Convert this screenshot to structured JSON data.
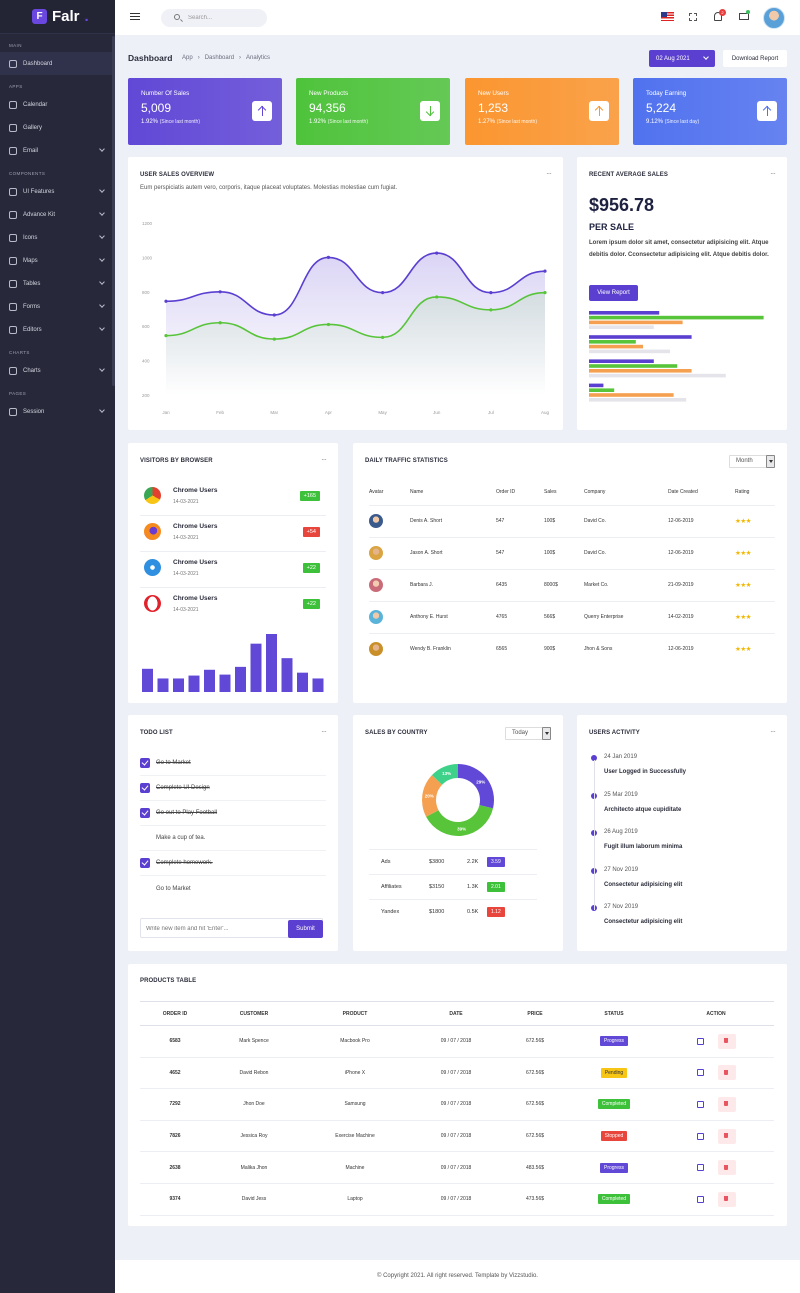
{
  "brand": {
    "name": "Falr",
    "logo_letter": "F"
  },
  "sidebar": {
    "sections": [
      {
        "title": "MAIN",
        "items": [
          {
            "label": "Dashboard",
            "icon": "home-icon",
            "has_children": false,
            "active": true
          }
        ]
      },
      {
        "title": "APPS",
        "items": [
          {
            "label": "Calendar",
            "icon": "calendar-icon",
            "has_children": false
          },
          {
            "label": "Gallery",
            "icon": "image-icon",
            "has_children": false
          },
          {
            "label": "Email",
            "icon": "mail-icon",
            "has_children": true
          }
        ]
      },
      {
        "title": "COMPONENTS",
        "items": [
          {
            "label": "UI Features",
            "icon": "features-icon",
            "has_children": true
          },
          {
            "label": "Advance Kit",
            "icon": "kit-icon",
            "has_children": true
          },
          {
            "label": "Icons",
            "icon": "icons-icon",
            "has_children": true
          },
          {
            "label": "Maps",
            "icon": "map-pin-icon",
            "has_children": true
          },
          {
            "label": "Tables",
            "icon": "table-icon",
            "has_children": true
          },
          {
            "label": "Forms",
            "icon": "form-icon",
            "has_children": true
          },
          {
            "label": "Editors",
            "icon": "editor-icon",
            "has_children": true
          }
        ]
      },
      {
        "title": "CHARTS",
        "items": [
          {
            "label": "Charts",
            "icon": "chart-icon",
            "has_children": true
          }
        ]
      },
      {
        "title": "PAGES",
        "items": [
          {
            "label": "Session",
            "icon": "user-icon",
            "has_children": true
          }
        ]
      }
    ]
  },
  "topbar": {
    "search_placeholder": "Search...",
    "notification_count": "2"
  },
  "page": {
    "title": "Dashboard",
    "breadcrumbs": [
      "App",
      "Dashboard",
      "Analytics"
    ],
    "date_label": "02 Aug 2021",
    "download_label": "Download Report"
  },
  "stats": [
    {
      "title": "Number Of Sales",
      "value": "5,009",
      "pct": "1.92%",
      "note": "(Since last month)",
      "color": "#6148d6",
      "direction": "up"
    },
    {
      "title": "New Products",
      "value": "94,356",
      "pct": "1.92%",
      "note": "(Since last month)",
      "color": "#4fc33c",
      "direction": "down"
    },
    {
      "title": "New Users",
      "value": "1,253",
      "pct": "1.27%",
      "note": "(Since last month)",
      "color": "#fb9630",
      "direction": "up"
    },
    {
      "title": "Today Earning",
      "value": "5,224",
      "pct": "9.12%",
      "note": "(Since last day)",
      "color": "#5172ef",
      "direction": "up"
    }
  ],
  "sales_overview": {
    "title": "USER SALES OVERVIEW",
    "subtitle": "Eum perspiciatis autem vero, corporis, itaque placeat voluptates. Molestias molestiae cum fugiat.",
    "chart_data": {
      "type": "area",
      "categories": [
        "Jan",
        "Feb",
        "Mar",
        "Apr",
        "May",
        "Jun",
        "Jul",
        "Aug"
      ],
      "series": [
        {
          "name": "Series 1",
          "color": "#5b3fd0",
          "values": [
            745,
            800,
            665,
            1000,
            795,
            1025,
            795,
            920
          ]
        },
        {
          "name": "Series 2",
          "color": "#58c43a",
          "values": [
            545,
            620,
            525,
            610,
            535,
            770,
            695,
            795
          ]
        }
      ],
      "yticks": [
        "200",
        "400",
        "600",
        "800",
        "1000",
        "1200"
      ],
      "ylim": [
        200,
        1200
      ]
    }
  },
  "recent_sales": {
    "title": "RECENT AVERAGE SALES",
    "amount": "$956.78",
    "per": "PER SALE",
    "desc": "Lorem ipsum dolor sit amet, consectetur adipisicing elit. Atque debitis dolor. Cconsectetur adipisicing elit. Atque debitis dolor.",
    "button": "View Report",
    "chart_data": {
      "type": "bar",
      "orientation": "horizontal",
      "groups": [
        {
          "values": [
            0.39,
            0.97,
            0.52,
            0.36
          ]
        },
        {
          "values": [
            0.57,
            0.26,
            0.3,
            0.45
          ]
        },
        {
          "values": [
            0.36,
            0.49,
            0.57,
            0.76
          ]
        },
        {
          "values": [
            0.08,
            0.14,
            0.47,
            0.54
          ]
        }
      ],
      "colors": [
        "#5b3fd0",
        "#58c43a",
        "#f5a050",
        "#e4e4ea"
      ]
    }
  },
  "browsers": {
    "title": "VISITORS BY BROWSER",
    "items": [
      {
        "name": "Chrome Users",
        "date": "14-03-2021",
        "badge": "+165",
        "badge_color": "#3ec13a",
        "icon": "chrome-icon"
      },
      {
        "name": "Chrome Users",
        "date": "14-03-2021",
        "badge": "+54",
        "badge_color": "#e8453c",
        "icon": "firefox-icon"
      },
      {
        "name": "Chrome Users",
        "date": "14-03-2021",
        "badge": "+22",
        "badge_color": "#3ec13a",
        "icon": "safari-icon"
      },
      {
        "name": "Chrome Users",
        "date": "14-03-2021",
        "badge": "+22",
        "badge_color": "#3ec13a",
        "icon": "opera-icon"
      }
    ],
    "chart_data": {
      "type": "bar",
      "values": [
        24,
        14,
        14,
        17,
        23,
        18,
        26,
        50,
        60,
        35,
        20,
        14
      ],
      "color": "#6148d6"
    }
  },
  "traffic": {
    "title": "DAILY TRAFFIC STATISTICS",
    "select": "Month",
    "columns": [
      "Avatar",
      "Name",
      "Order ID",
      "Sales",
      "Company",
      "Date Created",
      "Rating"
    ],
    "rows": [
      {
        "name": "Denis A. Short",
        "order": "547",
        "sales": "100$",
        "company": "David Co.",
        "date": "12-06-2019",
        "rating": "★★★"
      },
      {
        "name": "Jason A. Short",
        "order": "547",
        "sales": "100$",
        "company": "David Co.",
        "date": "12-06-2019",
        "rating": "★★★"
      },
      {
        "name": "Barbara J.",
        "order": "6435",
        "sales": "8000$",
        "company": "Market Co.",
        "date": "21-09-2019",
        "rating": "★★★"
      },
      {
        "name": "Anthony E. Hurst",
        "order": "4765",
        "sales": "566$",
        "company": "Querry Enterprise",
        "date": "14-02-2019",
        "rating": "★★★"
      },
      {
        "name": "Wendy B. Franklin",
        "order": "6565",
        "sales": "900$",
        "company": "Jhon & Sons",
        "date": "12-06-2019",
        "rating": "★★★"
      }
    ]
  },
  "todo": {
    "title": "TODO LIST",
    "items": [
      {
        "text": "Go to Market",
        "done": true
      },
      {
        "text": "Complete UI Design",
        "done": true
      },
      {
        "text": "Go out to Play Football",
        "done": true
      },
      {
        "text": "Make a cup of tea.",
        "done": false
      },
      {
        "text": "Complete homework.",
        "done": true
      },
      {
        "text": "Go to Market",
        "done": false
      }
    ],
    "input_placeholder": "Write new item and hit 'Enter'...",
    "submit": "Submit"
  },
  "country": {
    "title": "SALES BY COUNTRY",
    "select": "Today",
    "chart_data": {
      "type": "pie",
      "labels": [
        "",
        "",
        " ",
        ""
      ],
      "slices": [
        {
          "label": "29%",
          "value": 29,
          "color": "#6148d6"
        },
        {
          "label": "39%",
          "value": 39,
          "color": "#58c43a"
        },
        {
          "label": "20%",
          "value": 20,
          "color": "#f5a050"
        },
        {
          "label": "13%",
          "value": 13,
          "color": "#3ed18a"
        }
      ]
    },
    "rows": [
      {
        "name": "Ads",
        "amount": "$3800",
        "count": "2.2K",
        "pct": "3.59",
        "color": "#6148d6"
      },
      {
        "name": "Affiliates",
        "amount": "$3150",
        "count": "1.3K",
        "pct": "2.01",
        "color": "#3ec13a"
      },
      {
        "name": "Yandex",
        "amount": "$1800",
        "count": "0.5K",
        "pct": "1.12",
        "color": "#e8453c"
      }
    ]
  },
  "activity": {
    "title": "USERS ACTIVITY",
    "items": [
      {
        "date": "24 Jan 2019",
        "text": "User Logged in Successfully"
      },
      {
        "date": "25 Mar 2019",
        "text": "Architecto atque cupiditate"
      },
      {
        "date": "26 Aug 2019",
        "text": "Fugit illum laborum minima"
      },
      {
        "date": "27 Nov 2019",
        "text": "Consectetur adipisicing elit"
      },
      {
        "date": "27 Nov 2019",
        "text": "Consectetur adipisicing elit"
      }
    ]
  },
  "products": {
    "title": "PRODUCTS TABLE",
    "columns": [
      "ORDER ID",
      "CUSTOMER",
      "PRODUCT",
      "DATE",
      "PRICE",
      "STATUS",
      "ACTION"
    ],
    "rows": [
      {
        "id": "6583",
        "customer": "Mark Spence",
        "product": "Macbook Pro",
        "date": "09 / 07 / 2018",
        "price": "672.56$",
        "status": "Progress",
        "status_color": "#6148d6",
        "status_text": "#ffffff"
      },
      {
        "id": "4652",
        "customer": "David Rebon",
        "product": "iPhone X",
        "date": "09 / 07 / 2018",
        "price": "672.56$",
        "status": "Pending",
        "status_color": "#f7c514",
        "status_text": "#2b2d3b"
      },
      {
        "id": "7292",
        "customer": "Jhon Doe",
        "product": "Samsung",
        "date": "09 / 07 / 2018",
        "price": "672.56$",
        "status": "Completed",
        "status_color": "#3ec13a",
        "status_text": "#ffffff"
      },
      {
        "id": "7826",
        "customer": "Jessica Roy",
        "product": "Exercise Machine",
        "date": "09 / 07 / 2018",
        "price": "672.56$",
        "status": "Stopped",
        "status_color": "#e8453c",
        "status_text": "#ffffff"
      },
      {
        "id": "2638",
        "customer": "Malika Jhon",
        "product": "Machine",
        "date": "09 / 07 / 2018",
        "price": "483.56$",
        "status": "Progress",
        "status_color": "#6148d6",
        "status_text": "#ffffff"
      },
      {
        "id": "9374",
        "customer": "David Jess",
        "product": "Laptop",
        "date": "09 / 07 / 2018",
        "price": "473.56$",
        "status": "Completed",
        "status_color": "#3ec13a",
        "status_text": "#ffffff"
      }
    ]
  },
  "footer": {
    "text": "© Copyright 2021. All right reserved. Template by Vizzstudio."
  }
}
